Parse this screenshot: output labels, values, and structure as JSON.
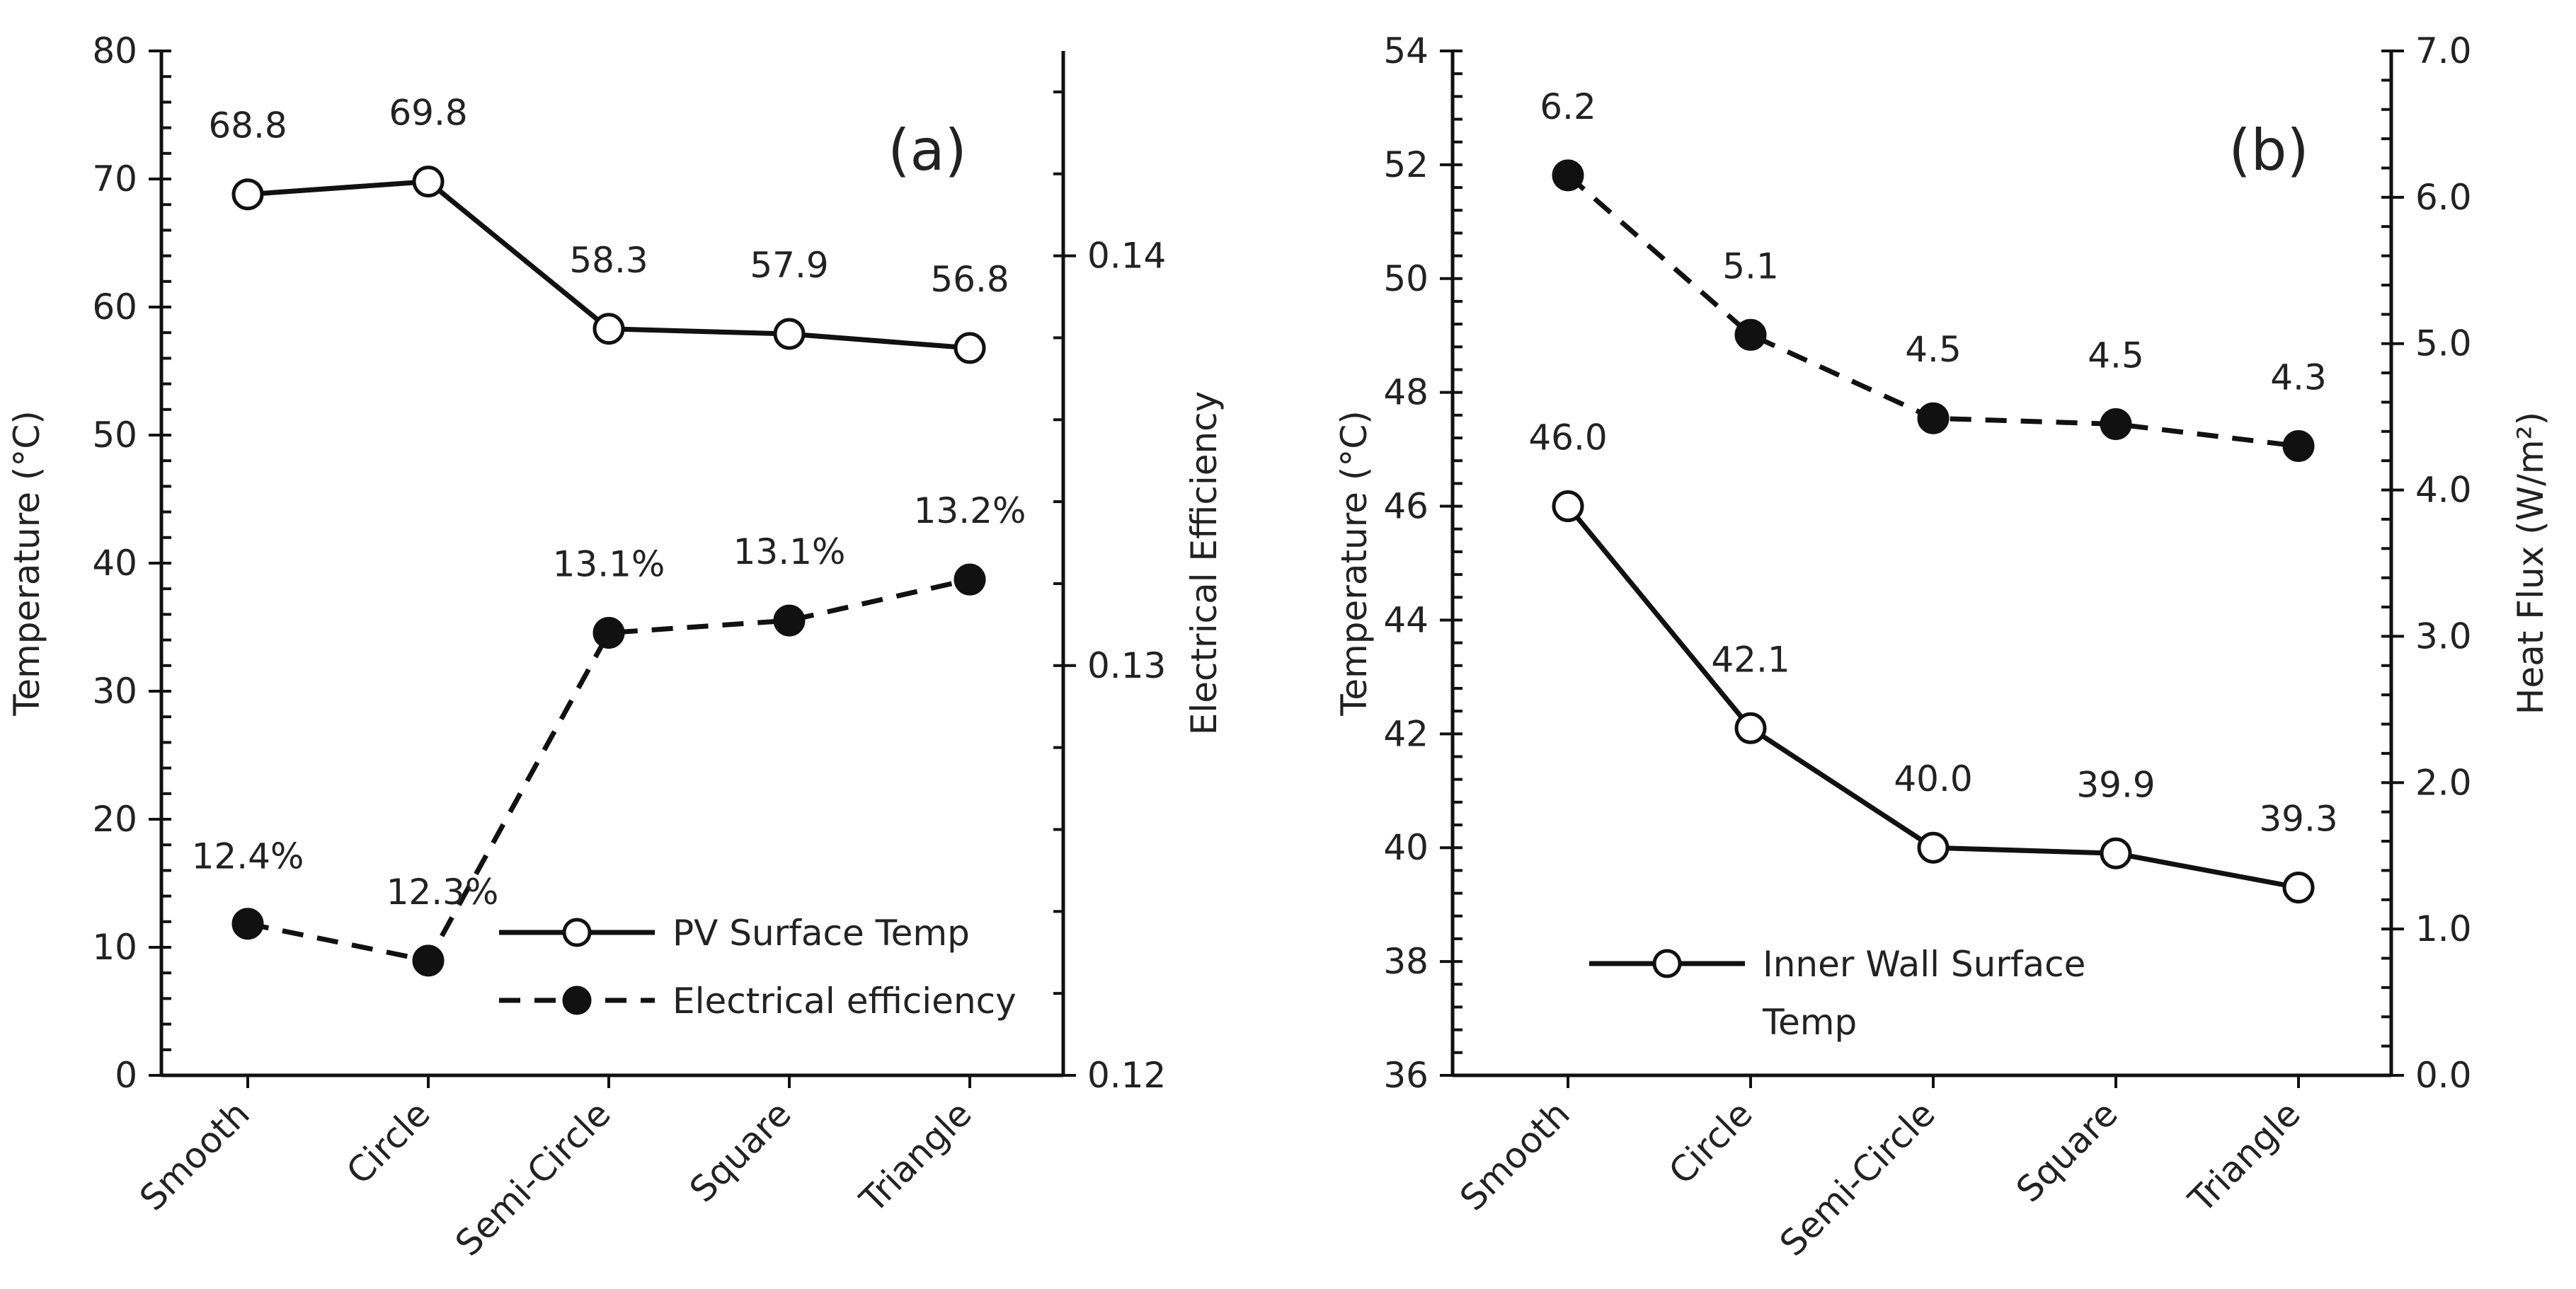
{
  "chart_data": [
    {
      "panel": "(a)",
      "type": "line",
      "categories": [
        "Smooth",
        "Circle",
        "Semi-Circle",
        "Square",
        "Triangle"
      ],
      "left_axis": {
        "label": "Temperature (°C)",
        "range": [
          0,
          80
        ],
        "ticks": [
          0,
          10,
          20,
          30,
          40,
          50,
          60,
          70,
          80
        ],
        "minor_step": 2
      },
      "right_axis": {
        "label": "Electrical Efficiency",
        "range": [
          0.12,
          0.145
        ],
        "ticks": [
          0.12,
          0.13,
          0.14
        ],
        "tick_labels": [
          "0.12",
          "0.13",
          "0.14"
        ],
        "minor_step": 0.002
      },
      "series": [
        {
          "name": "PV Surface Temp",
          "axis": "left",
          "style": "solid",
          "marker": "open-circle",
          "values": [
            68.8,
            69.8,
            58.3,
            57.9,
            56.8
          ],
          "labels": [
            "68.8",
            "69.8",
            "58.3",
            "57.9",
            "56.8"
          ]
        },
        {
          "name": "Electrical efficiency",
          "axis": "right",
          "style": "dashed",
          "marker": "filled-circle",
          "values": [
            0.1237,
            0.1228,
            0.1308,
            0.1311,
            0.1321
          ],
          "labels": [
            "12.4%",
            "12.3%",
            "13.1%",
            "13.1%",
            "13.2%"
          ]
        }
      ],
      "legend": [
        {
          "label": "PV Surface Temp",
          "line": "solid",
          "marker": "open-circle"
        },
        {
          "label": "Electrical efficiency",
          "line": "dashed",
          "marker": "filled-circle"
        }
      ],
      "legend_position": "bottom-right",
      "grid": false
    },
    {
      "panel": "(b)",
      "type": "line",
      "categories": [
        "Smooth",
        "Circle",
        "Semi-Circle",
        "Square",
        "Triangle"
      ],
      "left_axis": {
        "label": "Temperature (°C)",
        "range": [
          36,
          54
        ],
        "ticks": [
          36,
          38,
          40,
          42,
          44,
          46,
          48,
          50,
          52,
          54
        ],
        "minor_step": 0.4
      },
      "right_axis": {
        "label": "Heat Flux (W/m²)",
        "range": [
          0,
          7
        ],
        "ticks": [
          0,
          1,
          2,
          3,
          4,
          5,
          6,
          7
        ],
        "tick_labels": [
          "0.0",
          "1.0",
          "2.0",
          "3.0",
          "4.0",
          "5.0",
          "6.0",
          "7.0"
        ],
        "minor_step": 0.2
      },
      "series": [
        {
          "name": "Inner Wall Surface Temp",
          "axis": "left",
          "style": "solid",
          "marker": "open-circle",
          "values": [
            46.0,
            42.1,
            40.0,
            39.9,
            39.3
          ],
          "labels": [
            "46.0",
            "42.1",
            "40.0",
            "39.9",
            "39.3"
          ]
        },
        {
          "name": "Heat flux",
          "axis": "right",
          "style": "dashed",
          "marker": "filled-circle",
          "values": [
            6.15,
            5.06,
            4.49,
            4.45,
            4.3
          ],
          "labels": [
            "6.2",
            "5.1",
            "4.5",
            "4.5",
            "4.3"
          ]
        }
      ],
      "legend": [
        {
          "label": "Inner Wall Surface Temp",
          "line": "solid",
          "marker": "open-circle"
        }
      ],
      "legend_position": "bottom-left",
      "grid": false
    }
  ]
}
